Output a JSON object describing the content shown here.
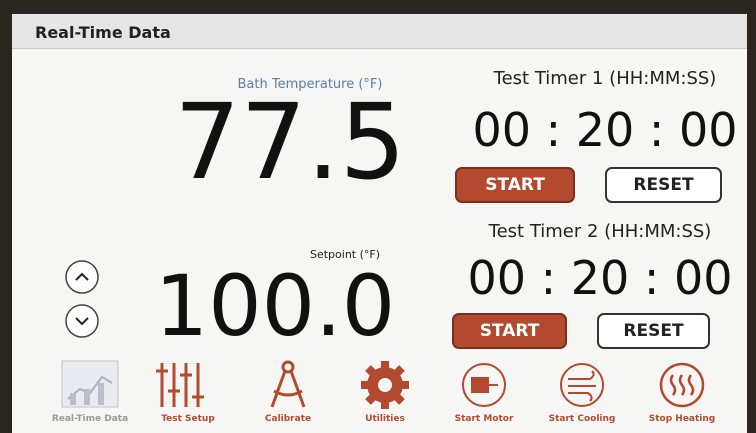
{
  "header": {
    "title": "Real-Time Data"
  },
  "bath": {
    "label": "Bath Temperature (°F)",
    "value": "77.5"
  },
  "setpoint": {
    "label": "Setpoint (°F)",
    "value": "100.0"
  },
  "timers": [
    {
      "title": "Test Timer 1 (HH:MM:SS)",
      "time": "00 : 20 : 00",
      "start": "START",
      "reset": "RESET"
    },
    {
      "title": "Test Timer 2 (HH:MM:SS)",
      "time": "00 : 20 : 00",
      "start": "START",
      "reset": "RESET"
    }
  ],
  "nav": [
    "Real-Time Data",
    "Test Setup",
    "Calibrate",
    "Utilities",
    "Start Motor",
    "Start Cooling",
    "Stop Heating"
  ]
}
